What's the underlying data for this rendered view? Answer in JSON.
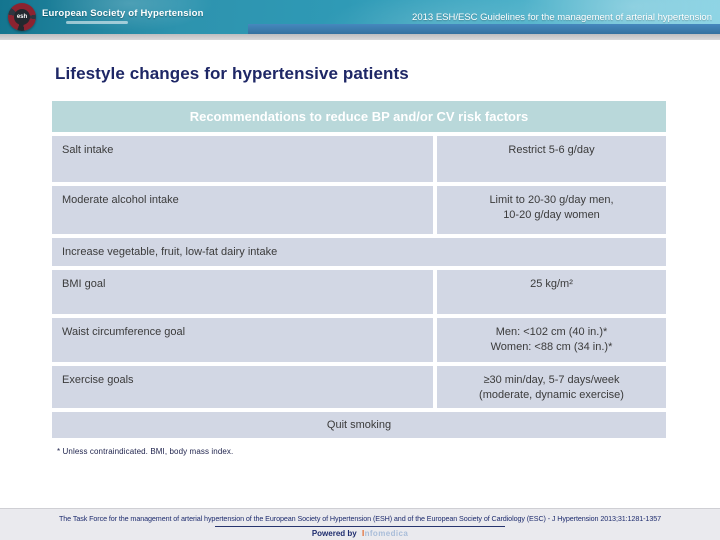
{
  "colors": {
    "banner-teal": "#2f9ab6",
    "subbar-blue": "#4688bd",
    "table-header-teal": "#b9d8da",
    "row-bg": "#d2d7e4",
    "title-navy": "#1e2766",
    "brand-orange": "#e2662a",
    "brand-blue": "#a9bdd9"
  },
  "banner": {
    "badge": "esh",
    "org_name": "European Society of Hypertension",
    "title": "2013 ESH/ESC Guidelines for the management of arterial hypertension"
  },
  "slide": {
    "title": "Lifestyle changes for hypertensive patients"
  },
  "table": {
    "header": "Recommendations to reduce BP and/or CV risk factors",
    "rows": [
      {
        "type": "two-col",
        "label": "Salt intake",
        "value_lines": [
          "Restrict 5-6 g/day"
        ]
      },
      {
        "type": "two-col",
        "label": "Moderate alcohol intake",
        "value_lines": [
          "Limit to 20-30 g/day men,",
          "10-20 g/day women"
        ]
      },
      {
        "type": "full",
        "label": "Increase vegetable, fruit, low-fat dairy intake"
      },
      {
        "type": "two-col",
        "label": "BMI goal",
        "value_lines": [
          "25 kg/m²"
        ]
      },
      {
        "type": "two-col",
        "label": "Waist circumference goal",
        "value_lines": [
          "Men: <102 cm (40 in.)*",
          "Women: <88 cm (34 in.)*"
        ]
      },
      {
        "type": "two-col",
        "label": "Exercise goals",
        "value_lines": [
          "≥30 min/day, 5-7 days/week",
          "(moderate, dynamic exercise)"
        ]
      },
      {
        "type": "full-center",
        "label": "Quit smoking"
      }
    ],
    "footnote": "* Unless contraindicated. BMI, body mass index."
  },
  "footer": {
    "reference": "The Task Force for the management of arterial hypertension of the European Society of Hypertension (ESH) and of the European Society of Cardiology (ESC) - J Hypertension 2013;31:1281-1357",
    "powered_by": "Powered by",
    "brand": "Infomedica"
  }
}
